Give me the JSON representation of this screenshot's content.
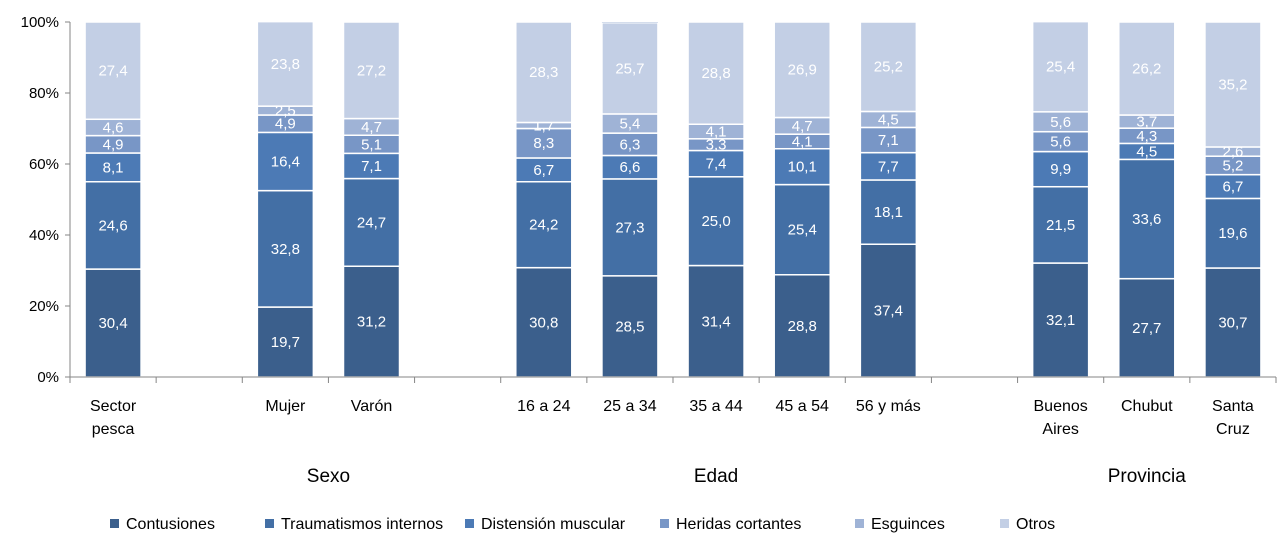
{
  "chart_data": {
    "type": "bar",
    "stacked": true,
    "percent": true,
    "yaxis": {
      "ylim": [
        0,
        100
      ],
      "ticks": [
        "0%",
        "20%",
        "40%",
        "60%",
        "80%",
        "100%"
      ]
    },
    "categories": [
      "Sector pesca",
      "",
      "Mujer",
      "Varón",
      "",
      "16 a 24",
      "25 a 34",
      "35 a 44",
      "45 a 54",
      "56 y más",
      "",
      "Buenos Aires",
      "Chubut",
      "Santa Cruz"
    ],
    "category_label_lines": [
      [
        "Sector",
        "pesca"
      ],
      [],
      [
        "Mujer"
      ],
      [
        "Varón"
      ],
      [],
      [
        "16 a 24"
      ],
      [
        "25 a 34"
      ],
      [
        "35 a 44"
      ],
      [
        "45 a 54"
      ],
      [
        "56 y más"
      ],
      [],
      [
        "Buenos",
        "Aires"
      ],
      [
        "Chubut"
      ],
      [
        "Santa",
        "Cruz"
      ]
    ],
    "groups": [
      {
        "label": "Sexo",
        "categories": [
          "Mujer",
          "Varón"
        ]
      },
      {
        "label": "Edad",
        "categories": [
          "16 a 24",
          "25 a 34",
          "35 a 44",
          "45 a 54",
          "56 y más"
        ]
      },
      {
        "label": "Provincia",
        "categories": [
          "Buenos Aires",
          "Chubut",
          "Santa Cruz"
        ]
      }
    ],
    "series": [
      {
        "name": "Contusiones",
        "color": "#3b5f8c",
        "values": [
          30.4,
          null,
          19.7,
          31.2,
          null,
          30.8,
          28.5,
          31.4,
          28.8,
          37.4,
          null,
          32.1,
          27.7,
          30.7
        ],
        "labels": [
          "30,4",
          "",
          "19,7",
          "31,2",
          "",
          "30,8",
          "28,5",
          "31,4",
          "28,8",
          "37,4",
          "",
          "32,1",
          "27,7",
          "30,7"
        ]
      },
      {
        "name": "Traumatismos internos",
        "color": "#436fa5",
        "values": [
          24.6,
          null,
          32.8,
          24.7,
          null,
          24.2,
          27.3,
          25.0,
          25.4,
          18.1,
          null,
          21.5,
          33.6,
          19.6
        ],
        "labels": [
          "24,6",
          "",
          "32,8",
          "24,7",
          "",
          "24,2",
          "27,3",
          "25,0",
          "25,4",
          "18,1",
          "",
          "21,5",
          "33,6",
          "19,6"
        ]
      },
      {
        "name": "Distensión muscular",
        "color": "#4c7ab5",
        "values": [
          8.1,
          null,
          16.4,
          7.1,
          null,
          6.7,
          6.6,
          7.4,
          10.1,
          7.7,
          null,
          9.9,
          4.5,
          6.7
        ],
        "labels": [
          "8,1",
          "",
          "16,4",
          "7,1",
          "",
          "6,7",
          "6,6",
          "7,4",
          "10,1",
          "7,7",
          "",
          "9,9",
          "4,5",
          "6,7"
        ]
      },
      {
        "name": "Heridas cortantes",
        "color": "#7896c6",
        "values": [
          4.9,
          null,
          4.9,
          5.1,
          null,
          8.3,
          6.3,
          3.3,
          4.1,
          7.1,
          null,
          5.6,
          4.3,
          5.2
        ],
        "labels": [
          "4,9",
          "",
          "4,9",
          "5,1",
          "",
          "8,3",
          "6,3",
          "3,3",
          "4,1",
          "7,1",
          "",
          "5,6",
          "4,3",
          "5,2"
        ]
      },
      {
        "name": "Esguinces",
        "color": "#9fb3d6",
        "values": [
          4.6,
          null,
          2.5,
          4.7,
          null,
          1.7,
          5.4,
          4.1,
          4.7,
          4.5,
          null,
          5.6,
          3.7,
          2.6
        ],
        "labels": [
          "4,6",
          "",
          "2,5",
          "4,7",
          "",
          "1,7",
          "5,4",
          "4,1",
          "4,7",
          "4,5",
          "",
          "5,6",
          "3,7",
          "2,6"
        ]
      },
      {
        "name": "Otros",
        "color": "#c3cfe5",
        "values": [
          27.4,
          null,
          23.8,
          27.2,
          null,
          28.3,
          25.7,
          28.8,
          26.9,
          25.2,
          null,
          25.4,
          26.2,
          35.2
        ],
        "labels": [
          "27,4",
          "",
          "23,8",
          "27,2",
          "",
          "28,3",
          "25,7",
          "28,8",
          "26,9",
          "25,2",
          "",
          "25,4",
          "26,2",
          "35,2"
        ]
      }
    ],
    "legend_position": "bottom",
    "grid": false
  }
}
